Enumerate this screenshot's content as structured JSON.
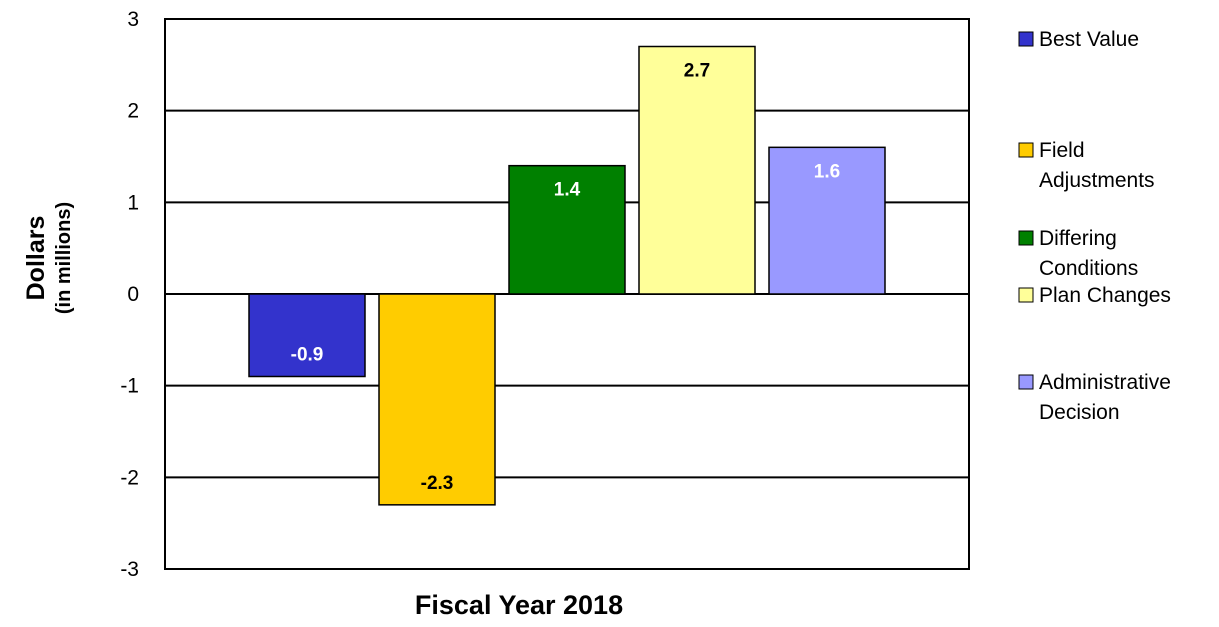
{
  "chart_data": {
    "type": "bar",
    "title": "",
    "xlabel": "Fiscal Year 2018",
    "ylabel": "Dollars",
    "ylabel_sub": "(in millions)",
    "ylim": [
      -3,
      3
    ],
    "yticks": [
      "3",
      "2",
      "1",
      "0",
      "-1",
      "-2",
      "-3"
    ],
    "ytick_values": [
      3,
      2,
      1,
      0,
      -1,
      -2,
      -3
    ],
    "grid": true,
    "legend_placement": "right",
    "series": [
      {
        "name": "Best Value",
        "legend_lines": [
          "Best Value"
        ],
        "value": -0.9,
        "label": "-0.9",
        "color": "#3333CC",
        "label_color": "#FFFFFF"
      },
      {
        "name": "Field Adjustments",
        "legend_lines": [
          "Field",
          "Adjustments"
        ],
        "value": -2.3,
        "label": "-2.3",
        "color": "#FFCC00",
        "label_color": "#000000"
      },
      {
        "name": "Differing Conditions",
        "legend_lines": [
          "Differing",
          "Conditions"
        ],
        "value": 1.4,
        "label": "1.4",
        "color": "#008000",
        "label_color": "#FFFFFF"
      },
      {
        "name": "Plan Changes",
        "legend_lines": [
          "Plan Changes"
        ],
        "value": 2.7,
        "label": "2.7",
        "color": "#FFFF99",
        "label_color": "#000000"
      },
      {
        "name": "Administrative Decision",
        "legend_lines": [
          "Administrative",
          "Decision"
        ],
        "value": 1.6,
        "label": "1.6",
        "color": "#9999FF",
        "label_color": "#FFFFFF"
      }
    ]
  }
}
